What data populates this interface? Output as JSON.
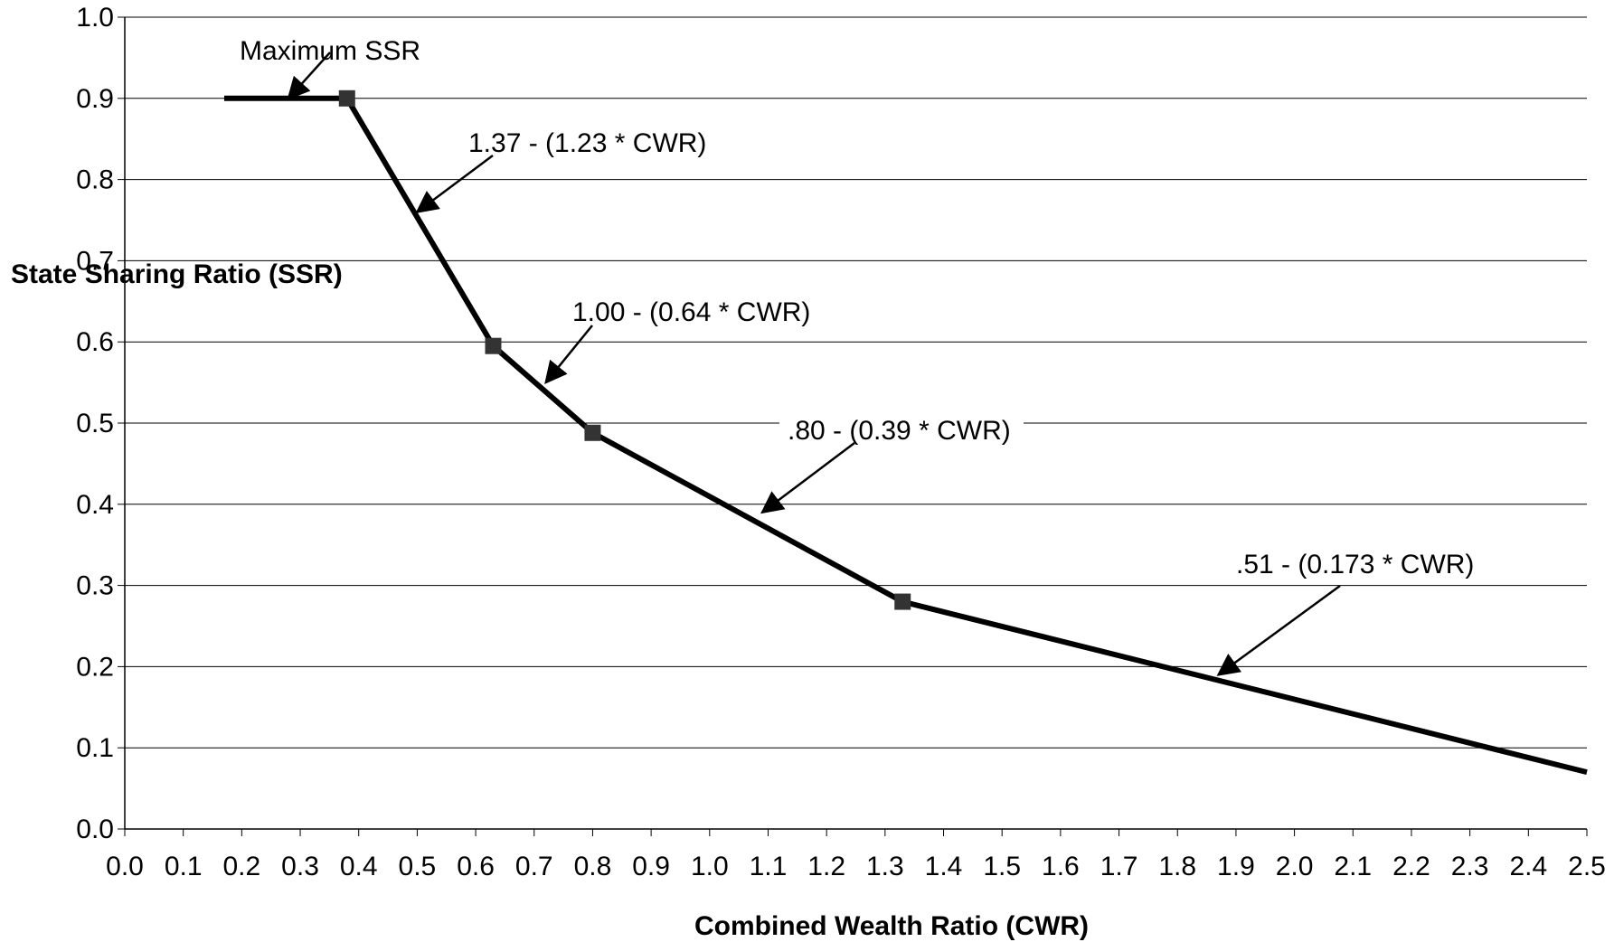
{
  "chart_data": {
    "type": "line",
    "title": "",
    "xlabel": "Combined Wealth Ratio (CWR)",
    "ylabel": "State Sharing Ratio (SSR)",
    "xlim": [
      0.0,
      2.5
    ],
    "ylim": [
      0.0,
      1.0
    ],
    "x_ticks": [
      "0.0",
      "0.1",
      "0.2",
      "0.3",
      "0.4",
      "0.5",
      "0.6",
      "0.7",
      "0.8",
      "0.9",
      "1.0",
      "1.1",
      "1.2",
      "1.3",
      "1.4",
      "1.5",
      "1.6",
      "1.7",
      "1.8",
      "1.9",
      "2.0",
      "2.1",
      "2.2",
      "2.3",
      "2.4",
      "2.5"
    ],
    "y_ticks": [
      "0.0",
      "0.1",
      "0.2",
      "0.3",
      "0.4",
      "0.5",
      "0.6",
      "0.7",
      "0.8",
      "0.9",
      "1.0"
    ],
    "grid": "horizontal",
    "line_color": "#000000",
    "marker_color": "#333333",
    "series": [
      {
        "x": [
          0.17,
          0.38,
          0.63,
          0.8,
          1.33,
          2.5
        ],
        "y": [
          0.9,
          0.9,
          0.595,
          0.488,
          0.28,
          0.07
        ]
      }
    ],
    "markers": [
      {
        "x": 0.38,
        "y": 0.9
      },
      {
        "x": 0.63,
        "y": 0.595
      },
      {
        "x": 0.8,
        "y": 0.488
      },
      {
        "x": 1.33,
        "y": 0.28
      }
    ],
    "annotations": [
      {
        "text": "Maximum SSR",
        "arrow_to": {
          "x": 0.28,
          "y": 0.9
        }
      },
      {
        "text": "1.37 - (1.23 * CWR)",
        "arrow_to": {
          "x": 0.5,
          "y": 0.76
        }
      },
      {
        "text": "1.00 - (0.64 * CWR)",
        "arrow_to": {
          "x": 0.72,
          "y": 0.55
        }
      },
      {
        "text": ".80 - (0.39 * CWR)",
        "arrow_to": {
          "x": 1.09,
          "y": 0.39
        }
      },
      {
        "text": ".51 - (0.173 * CWR)",
        "arrow_to": {
          "x": 1.87,
          "y": 0.19
        }
      }
    ]
  }
}
